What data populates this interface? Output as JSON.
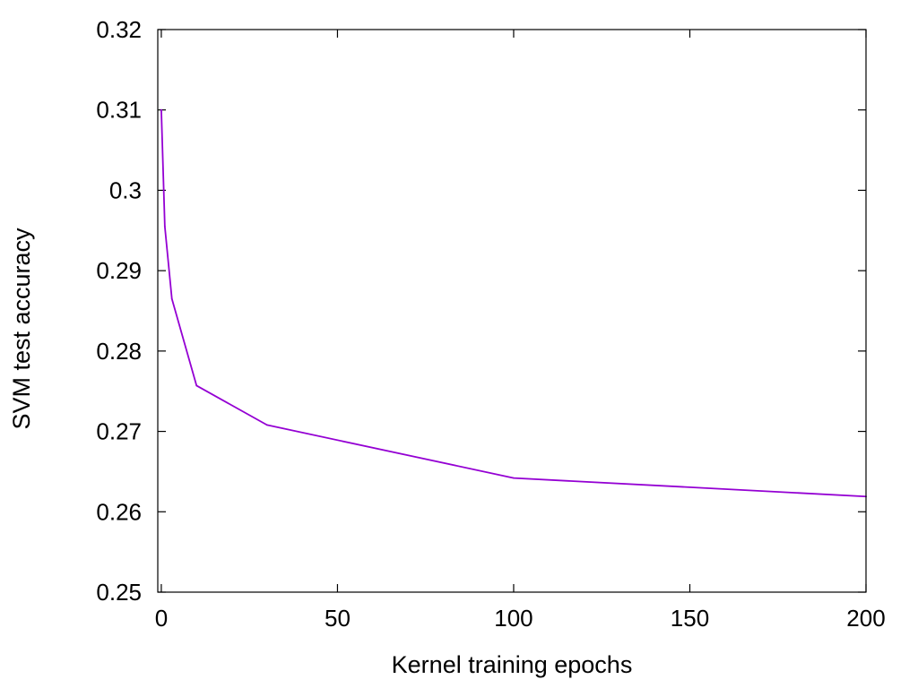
{
  "chart_data": {
    "type": "line",
    "title": "",
    "xlabel": "Kernel training epochs",
    "ylabel": "SVM test accuracy",
    "xlim": [
      -1,
      200
    ],
    "ylim": [
      0.25,
      0.32
    ],
    "x_ticks": [
      0,
      50,
      100,
      150,
      200
    ],
    "x_tick_labels": [
      "0",
      "50",
      "100",
      "150",
      "200"
    ],
    "y_ticks": [
      0.25,
      0.26,
      0.27,
      0.28,
      0.29,
      0.3,
      0.31,
      0.32
    ],
    "y_tick_labels": [
      "0.25",
      "0.26",
      "0.27",
      "0.28",
      "0.29",
      "0.3",
      "0.31",
      "0.32"
    ],
    "grid": false,
    "legend": "none",
    "series": [
      {
        "color": "#9400d3",
        "x": [
          0,
          1,
          3,
          10,
          30,
          100,
          200
        ],
        "y": [
          0.31,
          0.2955,
          0.2865,
          0.2757,
          0.2708,
          0.2642,
          0.2619
        ]
      }
    ]
  }
}
